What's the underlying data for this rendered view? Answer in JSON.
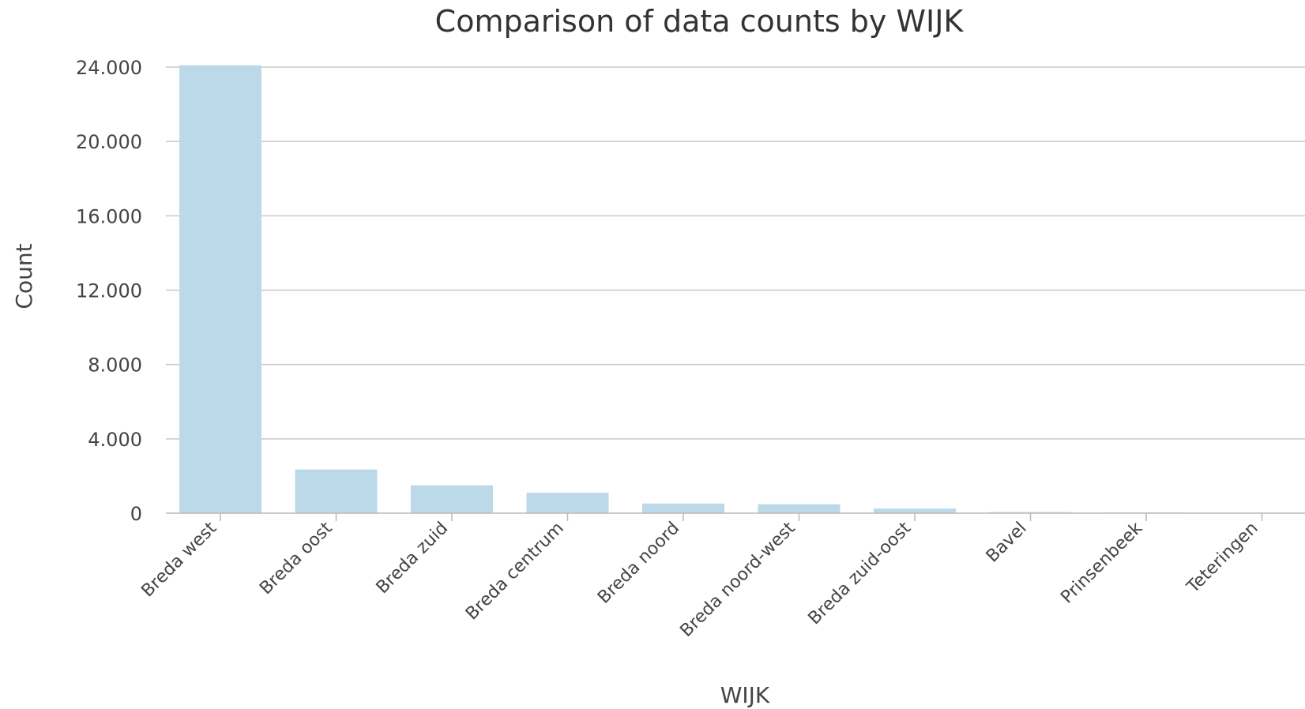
{
  "chart_data": {
    "type": "bar",
    "title": "Comparison of data counts by WIJK",
    "xlabel": "WIJK",
    "ylabel": "Count",
    "categories": [
      "Breda west",
      "Breda oost",
      "Breda zuid",
      "Breda centrum",
      "Breda noord",
      "Breda noord-west",
      "Breda zuid-oost",
      "Bavel",
      "Prinsenbeek",
      "Teteringen"
    ],
    "values": [
      24100,
      2350,
      1500,
      1100,
      520,
      480,
      250,
      60,
      40,
      30
    ],
    "ylim": [
      0,
      24000
    ],
    "yticks": [
      0,
      4000,
      8000,
      12000,
      16000,
      20000,
      24000
    ],
    "ytick_labels": [
      "0",
      "4.000",
      "8.000",
      "12.000",
      "16.000",
      "20.000",
      "24.000"
    ],
    "bar_color": "#bcd9e9",
    "grid": true,
    "legend": "none"
  }
}
